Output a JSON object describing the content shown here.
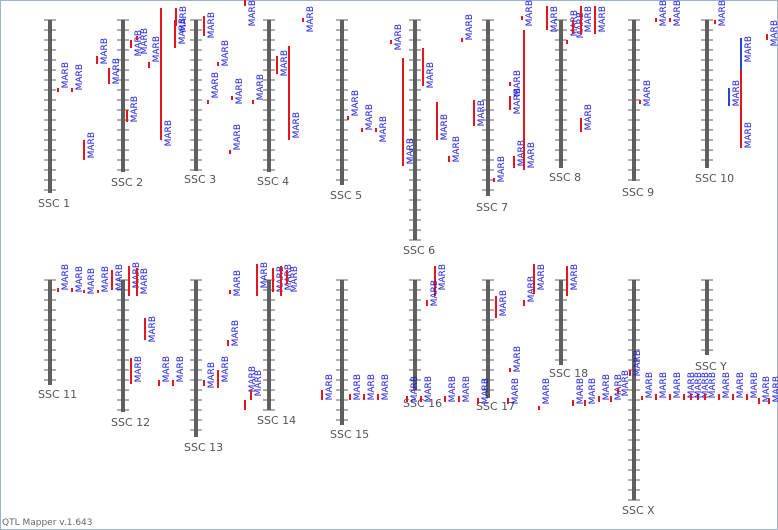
{
  "footer_text": "QTL Mapper v.1.643",
  "colors": {
    "chromosome": "#5f5f5f",
    "qtl_red": "#e8151d",
    "qtl_blue": "#2449c8",
    "label_text": "#1c1ce0"
  },
  "trait_label": "MARB",
  "chromosomes": [
    {
      "label": "SSC 1"
    },
    {
      "label": "SSC 2"
    },
    {
      "label": "SSC 3"
    },
    {
      "label": "SSC 4"
    },
    {
      "label": "SSC 5"
    },
    {
      "label": "SSC 6"
    },
    {
      "label": "SSC 7"
    },
    {
      "label": "SSC 8"
    },
    {
      "label": "SSC 9"
    },
    {
      "label": "SSC 10"
    },
    {
      "label": "SSC 11"
    },
    {
      "label": "SSC 12"
    },
    {
      "label": "SSC 13"
    },
    {
      "label": "SSC 14"
    },
    {
      "label": "SSC 15"
    },
    {
      "label": "SSC 16"
    },
    {
      "label": "SSC 17"
    },
    {
      "label": "SSC 18"
    },
    {
      "label": "SSC X"
    },
    {
      "label": "SSC Y"
    }
  ]
}
